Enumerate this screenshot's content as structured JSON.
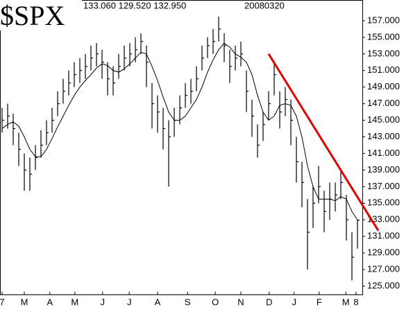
{
  "chart_data": {
    "type": "ohlc",
    "title": "$SPX",
    "last_quote": "133.060 129.520 132.950",
    "date": "20080320",
    "x": [
      0,
      1,
      2,
      3,
      4,
      5,
      6,
      7,
      8,
      9,
      10,
      11,
      12,
      13,
      14,
      15,
      16,
      17,
      18,
      19,
      20,
      21,
      22,
      23,
      24,
      25,
      26,
      27,
      28,
      29,
      30,
      31,
      32,
      33,
      34,
      35,
      36,
      37,
      38,
      39,
      40,
      41,
      42,
      43,
      44,
      45,
      46,
      47,
      48,
      49,
      50,
      51,
      52,
      53,
      54,
      55,
      56,
      57,
      58,
      59,
      60,
      61,
      62,
      63,
      64
    ],
    "high": [
      146.5,
      147.0,
      145.8,
      143.5,
      141.0,
      140.5,
      142.0,
      143.8,
      145.0,
      146.5,
      148.5,
      150.0,
      151.0,
      152.0,
      152.5,
      153.0,
      154.0,
      154.3,
      153.5,
      152.0,
      151.5,
      153.0,
      154.0,
      154.3,
      155.0,
      155.5,
      154.0,
      149.5,
      148.0,
      146.5,
      145.0,
      146.5,
      148.0,
      149.5,
      150.0,
      151.5,
      154.0,
      155.0,
      156.0,
      157.5,
      155.5,
      153.5,
      154.0,
      154.5,
      151.0,
      147.5,
      144.5,
      146.0,
      148.5,
      152.0,
      148.5,
      149.0,
      147.5,
      143.0,
      140.0,
      135.5,
      137.0,
      139.5,
      136.5,
      137.5,
      137.5,
      139.0,
      136.0,
      131.5,
      133.06
    ],
    "low": [
      143.5,
      144.0,
      142.0,
      139.5,
      136.5,
      136.5,
      139.0,
      140.5,
      142.0,
      143.5,
      145.5,
      147.0,
      148.0,
      149.0,
      149.5,
      150.0,
      151.0,
      151.5,
      150.0,
      148.0,
      148.0,
      150.0,
      151.0,
      151.5,
      152.0,
      153.0,
      149.0,
      144.0,
      143.5,
      141.5,
      137.0,
      143.0,
      144.5,
      146.5,
      147.0,
      148.5,
      151.0,
      152.5,
      153.0,
      154.5,
      152.0,
      149.5,
      151.0,
      151.5,
      146.0,
      143.0,
      140.5,
      142.5,
      145.0,
      148.0,
      144.0,
      145.5,
      142.0,
      137.5,
      134.5,
      127.0,
      132.0,
      135.0,
      131.5,
      133.0,
      134.0,
      135.5,
      130.5,
      125.7,
      129.52
    ],
    "close": [
      145.0,
      145.5,
      144.0,
      141.5,
      139.0,
      138.5,
      140.5,
      142.0,
      143.5,
      145.0,
      147.0,
      148.5,
      149.5,
      150.5,
      151.0,
      151.5,
      152.5,
      153.0,
      152.0,
      150.0,
      149.5,
      151.5,
      152.5,
      153.0,
      153.5,
      154.5,
      152.0,
      147.0,
      146.0,
      144.0,
      143.0,
      145.0,
      146.5,
      148.0,
      148.5,
      150.0,
      152.5,
      154.0,
      154.5,
      156.0,
      154.0,
      151.5,
      152.5,
      153.0,
      148.5,
      145.5,
      142.0,
      144.5,
      147.0,
      150.5,
      146.0,
      147.5,
      145.0,
      140.0,
      137.5,
      131.5,
      135.0,
      137.0,
      134.0,
      135.5,
      136.0,
      137.5,
      133.0,
      128.5,
      132.95
    ],
    "color": "#000000",
    "moving_average": {
      "color": "#000000",
      "values": [
        144.0,
        144.5,
        144.8,
        144.3,
        143.0,
        141.5,
        140.6,
        140.6,
        141.5,
        142.8,
        144.2,
        145.5,
        146.8,
        148.0,
        149.0,
        149.8,
        150.5,
        151.3,
        151.8,
        151.6,
        151.0,
        150.8,
        151.2,
        151.8,
        152.5,
        153.2,
        153.0,
        151.5,
        149.8,
        147.8,
        146.0,
        145.0,
        145.0,
        145.5,
        146.5,
        147.5,
        149.0,
        150.8,
        152.3,
        153.5,
        154.3,
        153.8,
        153.0,
        152.6,
        152.0,
        150.5,
        148.0,
        146.0,
        145.0,
        145.5,
        146.8,
        147.0,
        146.8,
        145.5,
        143.0,
        139.5,
        137.0,
        135.5,
        135.5,
        135.5,
        135.3,
        135.8,
        135.5,
        134.0,
        133.0
      ]
    },
    "trendline": {
      "color": "#e00000",
      "x": [
        48,
        67.75
      ],
      "y": [
        153.0,
        131.7
      ]
    },
    "xlim": [
      -0.375,
      64.875
    ],
    "ylim": [
      124,
      159.5
    ],
    "xticks": [
      {
        "value": 0,
        "label": "7"
      },
      {
        "value": 4,
        "label": "M"
      },
      {
        "value": 8.6,
        "label": "A"
      },
      {
        "value": 13.1,
        "label": "M"
      },
      {
        "value": 18.1,
        "label": "J"
      },
      {
        "value": 22.9,
        "label": "J"
      },
      {
        "value": 28,
        "label": "A"
      },
      {
        "value": 33.4,
        "label": "S"
      },
      {
        "value": 38.4,
        "label": "O"
      },
      {
        "value": 43,
        "label": "N"
      },
      {
        "value": 48.1,
        "label": "D"
      },
      {
        "value": 52.6,
        "label": "J"
      },
      {
        "value": 57.1,
        "label": "F"
      },
      {
        "value": 61.9,
        "label": "M"
      },
      {
        "value": 63.75,
        "label": "8"
      }
    ],
    "yticks": [
      {
        "value": 125,
        "label": "125.000"
      },
      {
        "value": 127,
        "label": "127.000"
      },
      {
        "value": 129,
        "label": "129.000"
      },
      {
        "value": 131,
        "label": "131.000"
      },
      {
        "value": 133,
        "label": "133.000"
      },
      {
        "value": 135,
        "label": "135.000"
      },
      {
        "value": 137,
        "label": "137.000"
      },
      {
        "value": 139,
        "label": "139.000"
      },
      {
        "value": 141,
        "label": "141.000"
      },
      {
        "value": 143,
        "label": "143.000"
      },
      {
        "value": 145,
        "label": "145.000"
      },
      {
        "value": 147,
        "label": "147.000"
      },
      {
        "value": 149,
        "label": "149.000"
      },
      {
        "value": 151,
        "label": "151.000"
      },
      {
        "value": 153,
        "label": "153.000"
      },
      {
        "value": 155,
        "label": "155.000"
      },
      {
        "value": 157,
        "label": "157.000"
      }
    ]
  }
}
